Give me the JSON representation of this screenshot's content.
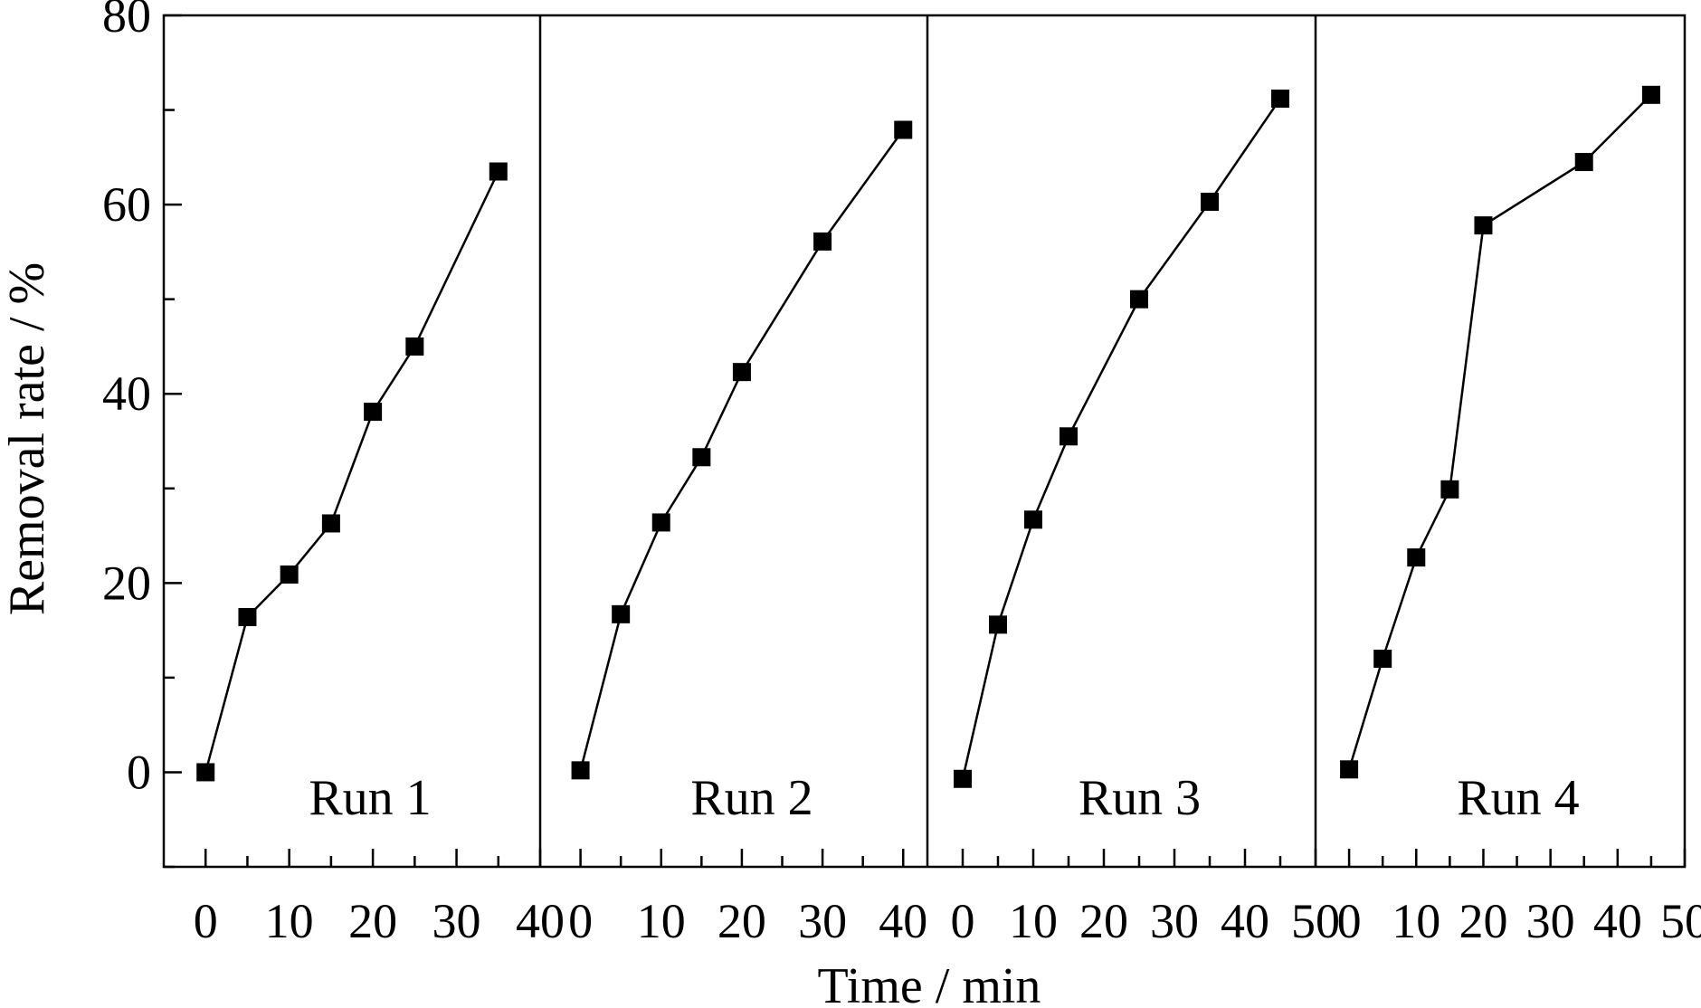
{
  "chart_data": {
    "type": "line",
    "xlabel": "Time / min",
    "ylabel": "Removal rate / %",
    "ylim": [
      -10,
      80
    ],
    "yticks": [
      0,
      20,
      40,
      60,
      80
    ],
    "yminor_step": 10,
    "panels": [
      {
        "label": "Run 1",
        "xlim": [
          -5,
          40
        ],
        "xticks": [
          0,
          10,
          20,
          30,
          40
        ],
        "xtick_labels": [
          "0",
          "10",
          "20",
          "30",
          "40"
        ],
        "x": [
          0,
          5,
          10,
          15,
          20,
          25,
          35
        ],
        "values": [
          0.0,
          16.4,
          20.9,
          26.3,
          38.1,
          45.0,
          63.5
        ]
      },
      {
        "label": "Run 2",
        "xlim": [
          -5,
          43
        ],
        "xticks": [
          0,
          10,
          20,
          30,
          40
        ],
        "xtick_labels": [
          "0",
          "10",
          "20",
          "30",
          "40"
        ],
        "x": [
          0,
          5,
          10,
          15,
          20,
          30,
          40
        ],
        "values": [
          0.2,
          16.7,
          26.4,
          33.3,
          42.3,
          56.1,
          67.9
        ]
      },
      {
        "label": "Run 3",
        "xlim": [
          -5,
          50
        ],
        "xticks": [
          0,
          10,
          20,
          30,
          40,
          50
        ],
        "xtick_labels": [
          "0",
          "10",
          "20",
          "30",
          "40",
          "50"
        ],
        "x": [
          0,
          5,
          10,
          15,
          25,
          35,
          45
        ],
        "values": [
          -0.7,
          15.6,
          26.7,
          35.5,
          50.0,
          60.3,
          71.2
        ]
      },
      {
        "label": "Run 4",
        "xlim": [
          -5,
          50
        ],
        "xticks": [
          0,
          10,
          20,
          30,
          40,
          50
        ],
        "xtick_labels": [
          "0",
          "10",
          "20",
          "30",
          "40",
          "50"
        ],
        "x": [
          0,
          5,
          10,
          15,
          20,
          35,
          45
        ],
        "values": [
          0.3,
          12.0,
          22.7,
          29.9,
          57.8,
          64.5,
          71.6
        ]
      }
    ],
    "marker": "square",
    "color": "#000000",
    "grid": false,
    "legend": "none"
  }
}
